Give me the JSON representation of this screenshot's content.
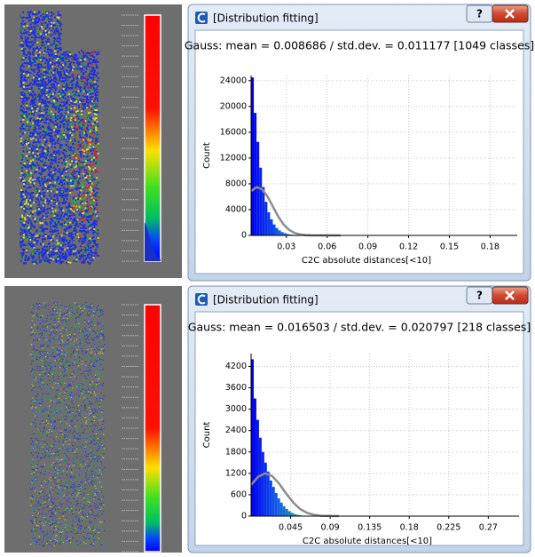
{
  "dialogs": [
    {
      "title": "[Distribution fitting]",
      "help": "?"
    },
    {
      "title": "[Distribution fitting]",
      "help": "?"
    }
  ],
  "chart_data": [
    {
      "type": "histogram",
      "title": "Gauss: mean = 0.008686 / std.dev. = 0.011177 [1049 classes]",
      "xlabel": "C2C absolute distances[<10]",
      "ylabel": "Count",
      "bins": [
        0.004,
        0.006,
        0.008,
        0.01,
        0.012,
        0.014,
        0.016,
        0.018,
        0.02,
        0.022,
        0.024,
        0.026,
        0.028,
        0.03,
        0.032,
        0.034,
        0.036,
        0.038,
        0.04,
        0.042,
        0.044
      ],
      "counts": [
        24500,
        19000,
        14500,
        10500,
        7500,
        5200,
        3600,
        2500,
        1700,
        1150,
        780,
        520,
        350,
        230,
        150,
        100,
        65,
        40,
        25,
        15
      ],
      "color_scale": [
        "#0000f0",
        "#1060e8",
        "#20b070"
      ],
      "fit": {
        "x": [
          0.004,
          0.008,
          0.012,
          0.016,
          0.02,
          0.024,
          0.028,
          0.032,
          0.036,
          0.04,
          0.044,
          0.048,
          0.056,
          0.07
        ],
        "values": [
          6870,
          7490,
          7180,
          6060,
          4500,
          2930,
          1680,
          850,
          380,
          150,
          50,
          15,
          0,
          0
        ],
        "color": "#8c8c8c"
      },
      "xlim": [
        0.004,
        0.2
      ],
      "ylim": [
        0,
        24800
      ],
      "xticks": [
        0.03,
        0.06,
        0.09,
        0.12,
        0.15,
        0.18
      ],
      "yticks": [
        0,
        4000,
        8000,
        12000,
        16000,
        20000,
        24000
      ],
      "grid": true
    },
    {
      "type": "histogram",
      "title": "Gauss: mean = 0.016503 / std.dev. = 0.020797 [218 classes]",
      "xlabel": "C2C absolute distances[<10]",
      "ylabel": "Count",
      "bins": [
        0,
        0.003,
        0.006,
        0.009,
        0.012,
        0.015,
        0.018,
        0.021,
        0.024,
        0.027,
        0.03,
        0.033,
        0.036,
        0.039,
        0.042,
        0.045,
        0.048,
        0.051,
        0.054,
        0.057,
        0.06
      ],
      "counts": [
        4400,
        3300,
        2700,
        2200,
        1800,
        1500,
        1250,
        1000,
        820,
        650,
        500,
        380,
        280,
        200,
        140,
        95,
        60,
        40,
        25,
        15
      ],
      "color_scale": [
        "#0000f0",
        "#1060e8",
        "#20b070"
      ],
      "fit": {
        "x": [
          0,
          0.008,
          0.016,
          0.024,
          0.032,
          0.04,
          0.048,
          0.056,
          0.064,
          0.072,
          0.08,
          0.1
        ],
        "values": [
          876,
          1104,
          1200,
          1124,
          909,
          634,
          381,
          198,
          88,
          34,
          11,
          0
        ],
        "color": "#8c8c8c"
      },
      "xlim": [
        0,
        0.305
      ],
      "ylim": [
        0,
        4560
      ],
      "xticks": [
        0.045,
        0.09,
        0.135,
        0.18,
        0.225,
        0.27
      ],
      "yticks": [
        0,
        600,
        1200,
        1800,
        2400,
        3000,
        3600,
        4200
      ],
      "grid": true
    }
  ]
}
